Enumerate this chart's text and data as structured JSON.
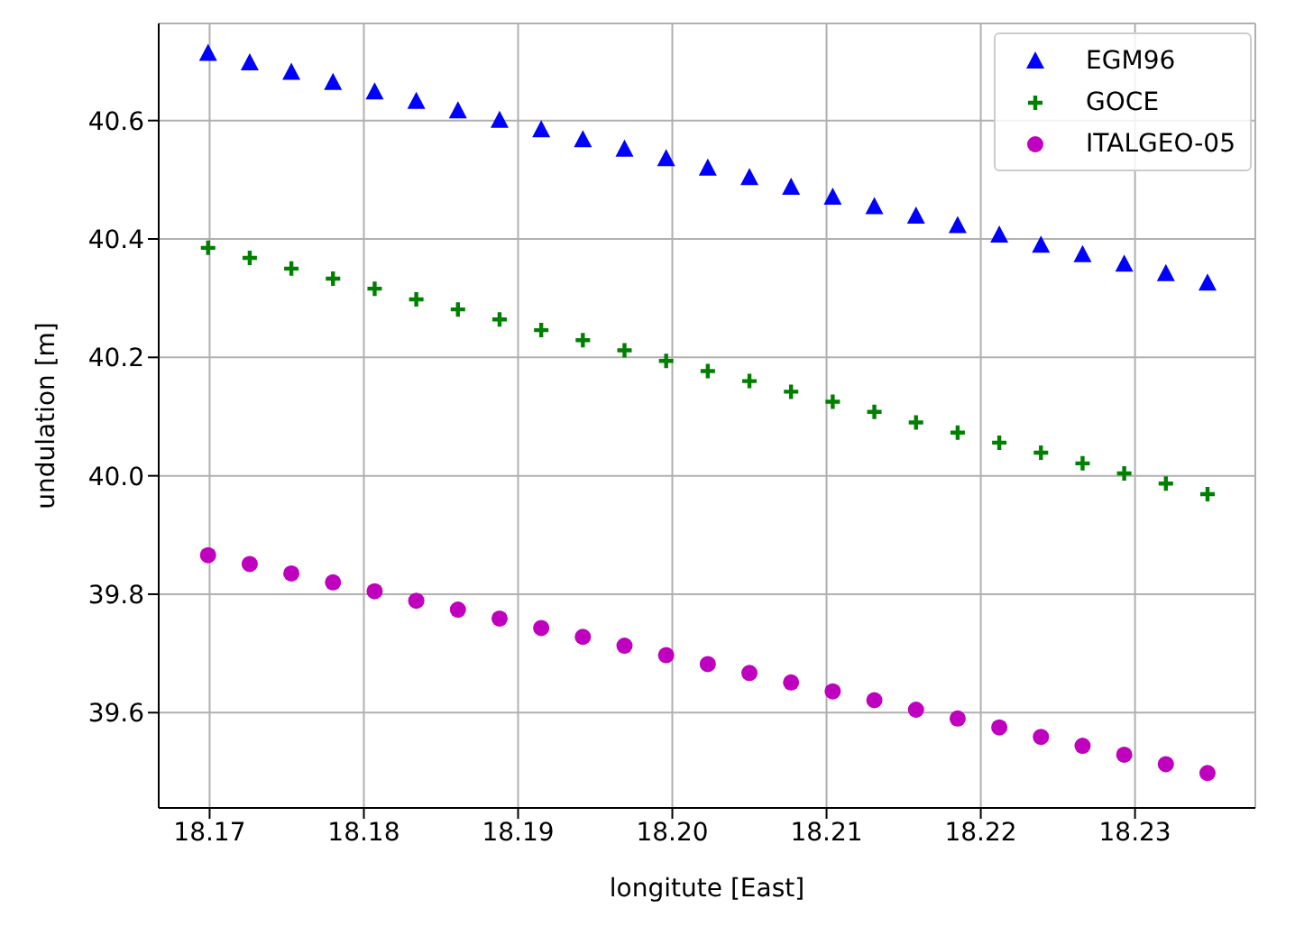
{
  "chart_data": {
    "type": "scatter",
    "xlabel": "longitute [East]",
    "ylabel": "undulation [m]",
    "x": [
      18.1699,
      18.1726,
      18.1753,
      18.178,
      18.1807,
      18.1834,
      18.1861,
      18.1888,
      18.1915,
      18.1942,
      18.1969,
      18.1996,
      18.2023,
      18.205,
      18.2077,
      18.2104,
      18.2131,
      18.2158,
      18.2185,
      18.2212,
      18.2239,
      18.2266,
      18.2293,
      18.232,
      18.2347
    ],
    "series": [
      {
        "name": "EGM96",
        "color": "#0000ff",
        "marker": "triangle",
        "values": [
          40.713,
          40.697,
          40.681,
          40.664,
          40.648,
          40.632,
          40.616,
          40.6,
          40.584,
          40.567,
          40.551,
          40.535,
          40.519,
          40.503,
          40.487,
          40.47,
          40.454,
          40.438,
          40.422,
          40.406,
          40.389,
          40.373,
          40.357,
          40.341,
          40.325
        ]
      },
      {
        "name": "GOCE",
        "color": "#008000",
        "marker": "cross",
        "values": [
          40.385,
          40.368,
          40.35,
          40.333,
          40.316,
          40.298,
          40.281,
          40.264,
          40.246,
          40.229,
          40.212,
          40.194,
          40.177,
          40.16,
          40.142,
          40.125,
          40.108,
          40.09,
          40.073,
          40.056,
          40.039,
          40.021,
          40.004,
          39.987,
          39.969
        ]
      },
      {
        "name": "ITALGEO-05",
        "color": "#bf00bf",
        "marker": "circle",
        "values": [
          39.866,
          39.851,
          39.835,
          39.82,
          39.805,
          39.789,
          39.774,
          39.759,
          39.743,
          39.728,
          39.713,
          39.697,
          39.682,
          39.667,
          39.651,
          39.636,
          39.621,
          39.605,
          39.59,
          39.575,
          39.559,
          39.544,
          39.529,
          39.513,
          39.498
        ]
      }
    ],
    "xlim": [
      18.1667,
      18.2378
    ],
    "xticks": [
      {
        "value": 18.17,
        "label": "18.17"
      },
      {
        "value": 18.18,
        "label": "18.18"
      },
      {
        "value": 18.19,
        "label": "18.19"
      },
      {
        "value": 18.2,
        "label": "18.20"
      },
      {
        "value": 18.21,
        "label": "18.21"
      },
      {
        "value": 18.22,
        "label": "18.22"
      },
      {
        "value": 18.23,
        "label": "18.23"
      }
    ],
    "ylim": [
      39.439,
      40.764
    ],
    "yticks": [
      39.6,
      39.8,
      {
        "value": 40,
        "label": "40.0"
      },
      40.2,
      40.4,
      40.6
    ],
    "grid": true,
    "legend": "top right"
  }
}
